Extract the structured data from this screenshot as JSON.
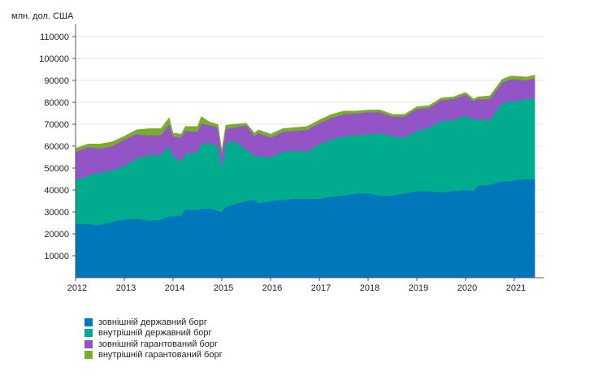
{
  "chart_data": {
    "type": "area",
    "stacked": true,
    "unit_label": "млн. дол. США",
    "ylim": [
      0,
      115000
    ],
    "y_ticks": [
      10000,
      20000,
      30000,
      40000,
      50000,
      60000,
      70000,
      80000,
      90000,
      100000,
      110000
    ],
    "y_tick_labels": [
      "10000",
      "20000",
      "30000",
      "40000",
      "50000",
      "60000",
      "70000",
      "80000",
      "90000",
      "100000",
      "110000"
    ],
    "x_range": [
      2012.0,
      2021.5
    ],
    "x_ticks": [
      2012,
      2013,
      2014,
      2015,
      2016,
      2017,
      2018,
      2019,
      2020,
      2021
    ],
    "x_tick_labels": [
      "2012",
      "2013",
      "2014",
      "2015",
      "2016",
      "2017",
      "2018",
      "2019",
      "2020",
      "2021"
    ],
    "grid": "horizontal",
    "legend_position": "bottom-left",
    "x": [
      2012.0,
      2012.25,
      2012.5,
      2012.75,
      2013.0,
      2013.25,
      2013.5,
      2013.75,
      2013.92,
      2014.0,
      2014.17,
      2014.25,
      2014.5,
      2014.58,
      2014.75,
      2014.92,
      2015.0,
      2015.08,
      2015.25,
      2015.5,
      2015.67,
      2015.75,
      2016.0,
      2016.25,
      2016.5,
      2016.75,
      2017.0,
      2017.25,
      2017.5,
      2017.75,
      2018.0,
      2018.25,
      2018.5,
      2018.75,
      2019.0,
      2019.25,
      2019.5,
      2019.75,
      2020.0,
      2020.17,
      2020.25,
      2020.5,
      2020.75,
      2020.92,
      2021.0,
      2021.25,
      2021.42
    ],
    "series": [
      {
        "name": "зовнішній державний борг",
        "color": "#0077bb",
        "values": [
          24500,
          24500,
          24000,
          25500,
          26500,
          27000,
          26000,
          26500,
          28000,
          28000,
          28500,
          31000,
          31000,
          31500,
          31500,
          30500,
          30000,
          32500,
          33500,
          35000,
          35500,
          34000,
          35000,
          35500,
          36000,
          36000,
          36000,
          37000,
          37500,
          38500,
          38500,
          37500,
          37500,
          38500,
          39500,
          39500,
          39000,
          39500,
          40000,
          39500,
          42000,
          42500,
          44000,
          44000,
          44500,
          45000,
          45000
        ]
      },
      {
        "name": "внутрішній державний борг",
        "color": "#00ab8e",
        "values": [
          20000,
          22000,
          24000,
          23500,
          24500,
          27500,
          30000,
          29500,
          32000,
          27500,
          24500,
          25500,
          26500,
          29500,
          30000,
          29500,
          20000,
          29000,
          29000,
          23500,
          20000,
          21500,
          20000,
          22000,
          22000,
          21500,
          25000,
          26000,
          27000,
          26500,
          27000,
          28500,
          27000,
          25500,
          27500,
          29000,
          32500,
          32500,
          34000,
          32500,
          30500,
          29500,
          35500,
          36500,
          36000,
          36500,
          36500
        ]
      },
      {
        "name": "зовнішній гарантований борг",
        "color": "#9355c6",
        "values": [
          13000,
          13000,
          11000,
          11000,
          12000,
          11000,
          9000,
          9000,
          10000,
          9000,
          11000,
          10500,
          9000,
          9500,
          8000,
          8500,
          6500,
          6500,
          6000,
          11000,
          9000,
          10500,
          9000,
          9000,
          9000,
          10000,
          9500,
          10000,
          10000,
          10000,
          10000,
          9500,
          9000,
          9500,
          10000,
          9000,
          9500,
          9500,
          9500,
          8500,
          9000,
          9500,
          9500,
          10000,
          10000,
          8500,
          9500
        ]
      },
      {
        "name": "внутрішній гарантований борг",
        "color": "#79ad2b",
        "values": [
          1500,
          1500,
          2000,
          2000,
          1500,
          2000,
          3000,
          3000,
          3000,
          1500,
          1500,
          2000,
          2500,
          3000,
          1500,
          1500,
          1500,
          1500,
          1500,
          1000,
          1500,
          1500,
          1500,
          1500,
          1500,
          1500,
          1500,
          1500,
          1500,
          1000,
          1000,
          1000,
          1000,
          1000,
          1000,
          1000,
          1000,
          1000,
          1000,
          1000,
          1000,
          1500,
          1500,
          1500,
          1500,
          1500,
          1500
        ]
      }
    ]
  }
}
